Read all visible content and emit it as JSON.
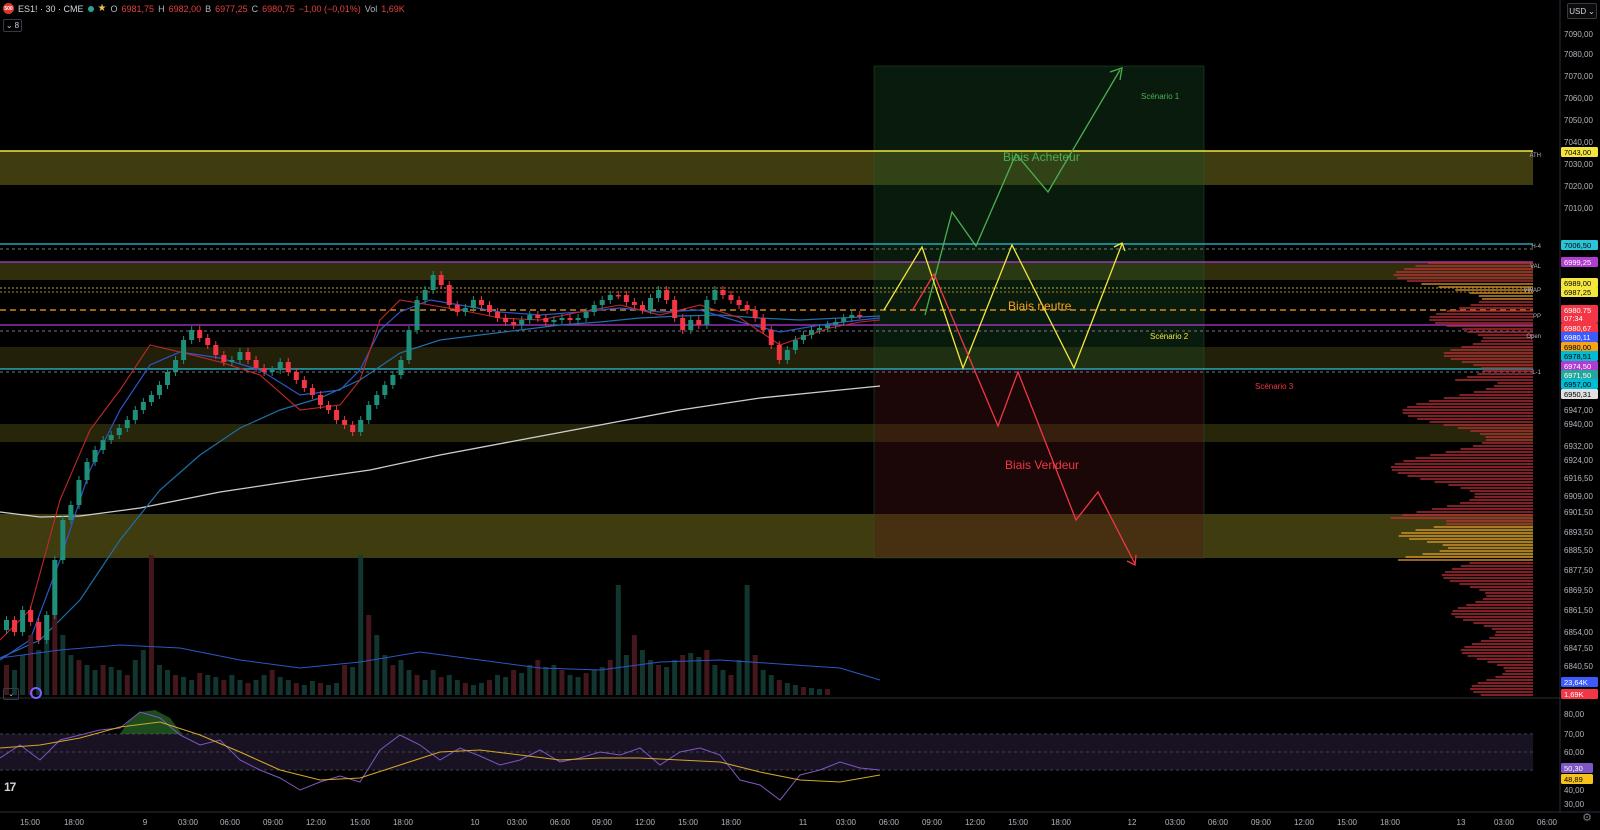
{
  "header": {
    "symbol_logo": "500",
    "symbol": "ES1! · 30 · CME",
    "open_label": "O",
    "open": "6981,75",
    "high_label": "H",
    "high": "6982,00",
    "low_label": "B",
    "low": "6977,25",
    "close_label": "C",
    "close": "6980,75",
    "change": "−1,00 (−0,01%)",
    "vol_label": "Vol",
    "vol": "1,69K",
    "indicator_count": "8",
    "currency": "USD"
  },
  "colors": {
    "bull": "#1f8f7a",
    "bear": "#f23645",
    "yellow": "#f5e63d",
    "cyan": "#2ac3d8",
    "purple": "#b13cd2",
    "green": "#4caf50",
    "red": "#f23645",
    "orange": "#e49c2d"
  },
  "price_axis": {
    "ticks": [
      "7090,00",
      "7080,00",
      "7070,00",
      "7060,00",
      "7050,00",
      "7040,00",
      "7030,00",
      "7020,00",
      "7010,00",
      "6947,00",
      "6940,00",
      "6932,00",
      "6924,00",
      "6916,50",
      "6909,00",
      "6901,50",
      "6893,50",
      "6885,50",
      "6877,50",
      "6869,50",
      "6861,50",
      "6854,00",
      "6847,50",
      "6840,50"
    ],
    "tags": [
      {
        "text": "7043,00",
        "bg": "#f5e63d",
        "fg": "#000"
      },
      {
        "text": "7006,50",
        "bg": "#2ac3d8",
        "fg": "#000"
      },
      {
        "text": "6999,25",
        "bg": "#b13cd2",
        "fg": "#fff"
      },
      {
        "text": "6989,00",
        "bg": "#f5e63d",
        "fg": "#000"
      },
      {
        "text": "6987,25",
        "bg": "#f5e63d",
        "fg": "#000"
      },
      {
        "text": "6980,75",
        "bg": "#f23645",
        "fg": "#fff"
      },
      {
        "text": "07:34",
        "bg": "#f23645",
        "fg": "#fff"
      },
      {
        "text": "6980,67",
        "bg": "#f23645",
        "fg": "#fff"
      },
      {
        "text": "6980,11",
        "bg": "#3d5afe",
        "fg": "#fff"
      },
      {
        "text": "6980,00",
        "bg": "#f7a21b",
        "fg": "#000"
      },
      {
        "text": "6978,51",
        "bg": "#00bcd4",
        "fg": "#000"
      },
      {
        "text": "6974,50",
        "bg": "#b13cd2",
        "fg": "#fff"
      },
      {
        "text": "6971,50",
        "bg": "#26a69a",
        "fg": "#fff"
      },
      {
        "text": "6957,00",
        "bg": "#00bcd4",
        "fg": "#000"
      },
      {
        "text": "6950,31",
        "bg": "#e0e0e0",
        "fg": "#000"
      },
      {
        "text": "23,64K",
        "bg": "#3d5afe",
        "fg": "#fff"
      },
      {
        "text": "1,69K",
        "bg": "#f23645",
        "fg": "#fff"
      }
    ],
    "line_labels": [
      "ATH",
      "H-4",
      "VAL",
      "VWAP",
      "PP",
      "Open",
      "L-1"
    ]
  },
  "rsi_axis": {
    "ticks": [
      "80,00",
      "70,00",
      "60,00",
      "40,00",
      "30,00"
    ],
    "tags": [
      {
        "text": "50,30",
        "bg": "#7e57c2",
        "fg": "#fff"
      },
      {
        "text": "48,89",
        "bg": "#f7c21b",
        "fg": "#000"
      }
    ]
  },
  "time_axis": {
    "labels": [
      "15:00",
      "18:00",
      "9",
      "03:00",
      "06:00",
      "09:00",
      "12:00",
      "15:00",
      "18:00",
      "10",
      "03:00",
      "06:00",
      "09:00",
      "12:00",
      "15:00",
      "18:00",
      "11",
      "03:00",
      "06:00",
      "09:00",
      "12:00",
      "15:00",
      "18:00",
      "12",
      "03:00",
      "06:00",
      "09:00",
      "12:00",
      "15:00",
      "18:00",
      "13",
      "03:00",
      "06:00"
    ]
  },
  "annotations": {
    "biais_acheteur": "Biais Acheteur",
    "biais_neutre": "Biais neutre",
    "biais_vendeur": "Biais Vendeur",
    "scenario_1": "Scénario 1",
    "scenario_2": "Scénario 2",
    "scenario_3": "Scénario 3"
  }
}
